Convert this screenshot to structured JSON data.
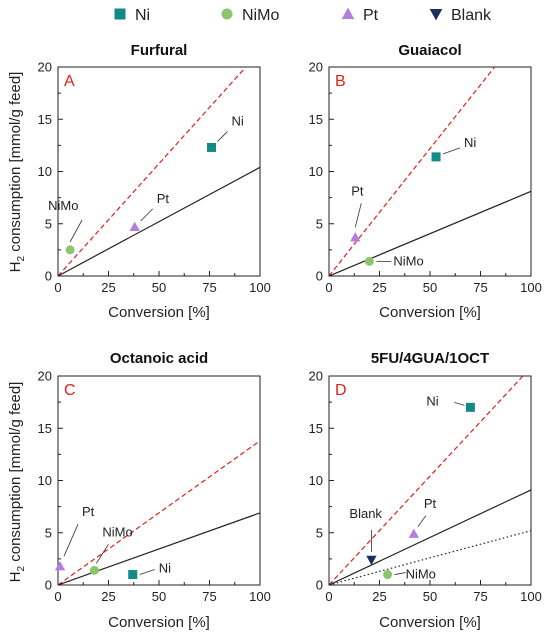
{
  "legend": [
    {
      "name": "Ni",
      "marker": "square",
      "color": "#138a87"
    },
    {
      "name": "NiMo",
      "marker": "circle",
      "color": "#8cc36b"
    },
    {
      "name": "Pt",
      "marker": "triangle-up",
      "color": "#b27fe0"
    },
    {
      "name": "Blank",
      "marker": "triangle-down",
      "color": "#1a2f5e"
    }
  ],
  "ylabel_prefix": "H",
  "ylabel_sub": "2",
  "ylabel_rest": " consumption [mmol/g feed]",
  "chart_data": [
    {
      "type": "scatter",
      "title": "Furfural",
      "letter": "A",
      "xlabel": "Conversion [%]",
      "xlim": [
        0,
        100
      ],
      "ylim": [
        0,
        20
      ],
      "xticks": [
        "0",
        "25",
        "50",
        "75",
        "100"
      ],
      "yticks": [
        "0",
        "5",
        "10",
        "15",
        "20"
      ],
      "points": [
        {
          "series": "Ni",
          "label": "Ni",
          "x": 76,
          "y": 12.3
        },
        {
          "series": "NiMo",
          "label": "NiMo",
          "x": 6,
          "y": 2.5
        },
        {
          "series": "Pt",
          "label": "Pt",
          "x": 38,
          "y": 4.7
        }
      ],
      "lines": [
        {
          "style": "dashed-red",
          "x0": 0,
          "y0": 0,
          "x1": 93,
          "y1": 20
        },
        {
          "style": "solid-black",
          "x0": 0,
          "y0": 0,
          "x1": 100,
          "y1": 10.4
        }
      ]
    },
    {
      "type": "scatter",
      "title": "Guaiacol",
      "letter": "B",
      "xlabel": "Conversion [%]",
      "xlim": [
        0,
        100
      ],
      "ylim": [
        0,
        20
      ],
      "xticks": [
        "0",
        "25",
        "50",
        "75",
        "100"
      ],
      "yticks": [
        "0",
        "5",
        "10",
        "15",
        "20"
      ],
      "points": [
        {
          "series": "Ni",
          "label": "Ni",
          "x": 53,
          "y": 11.4
        },
        {
          "series": "NiMo",
          "label": "NiMo",
          "x": 20,
          "y": 1.4
        },
        {
          "series": "Pt",
          "label": "Pt",
          "x": 13,
          "y": 3.7
        }
      ],
      "lines": [
        {
          "style": "dashed-red",
          "x0": 0,
          "y0": 0,
          "x1": 82,
          "y1": 20
        },
        {
          "style": "solid-black",
          "x0": 0,
          "y0": 0,
          "x1": 100,
          "y1": 8.1
        }
      ]
    },
    {
      "type": "scatter",
      "title": "Octanoic acid",
      "letter": "C",
      "xlabel": "Conversion [%]",
      "xlim": [
        0,
        100
      ],
      "ylim": [
        0,
        20
      ],
      "xticks": [
        "0",
        "25",
        "50",
        "75",
        "100"
      ],
      "yticks": [
        "0",
        "5",
        "10",
        "15",
        "20"
      ],
      "points": [
        {
          "series": "Ni",
          "label": "Ni",
          "x": 37,
          "y": 1.0
        },
        {
          "series": "NiMo",
          "label": "NiMo",
          "x": 18,
          "y": 1.4
        },
        {
          "series": "Pt",
          "label": "Pt",
          "x": 1,
          "y": 1.8
        }
      ],
      "lines": [
        {
          "style": "dashed-red",
          "x0": 0,
          "y0": 0,
          "x1": 100,
          "y1": 13.8
        },
        {
          "style": "solid-black",
          "x0": 0,
          "y0": 0,
          "x1": 100,
          "y1": 6.9
        }
      ]
    },
    {
      "type": "scatter",
      "title": "5FU/4GUA/1OCT",
      "letter": "D",
      "xlabel": "Conversion [%]",
      "xlim": [
        0,
        100
      ],
      "ylim": [
        0,
        20
      ],
      "xticks": [
        "0",
        "25",
        "50",
        "75",
        "100"
      ],
      "yticks": [
        "0",
        "5",
        "10",
        "15",
        "20"
      ],
      "points": [
        {
          "series": "Ni",
          "label": "Ni",
          "x": 70,
          "y": 17.0
        },
        {
          "series": "NiMo",
          "label": "NiMo",
          "x": 29,
          "y": 1.0
        },
        {
          "series": "Pt",
          "label": "Pt",
          "x": 42,
          "y": 4.9
        },
        {
          "series": "Blank",
          "label": "Blank",
          "x": 21,
          "y": 2.4
        }
      ],
      "lines": [
        {
          "style": "dashed-red",
          "x0": 0,
          "y0": 0,
          "x1": 96,
          "y1": 20
        },
        {
          "style": "solid-black",
          "x0": 0,
          "y0": 0,
          "x1": 100,
          "y1": 9.1
        },
        {
          "style": "dotted-black",
          "x0": 0,
          "y0": 0,
          "x1": 100,
          "y1": 5.2
        }
      ]
    }
  ]
}
